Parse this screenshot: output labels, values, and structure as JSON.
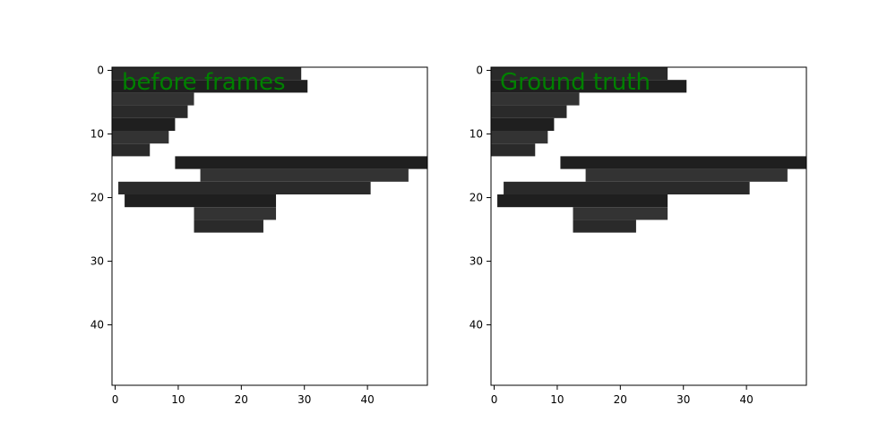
{
  "figure": {
    "background": "#ffffff",
    "panels_count": 2
  },
  "chart_data": [
    {
      "type": "heatmap",
      "title": "",
      "overlay_label": "before frames",
      "overlay_label_color": "#008000",
      "xlabel": "",
      "ylabel": "",
      "grid_size": [
        50,
        50
      ],
      "xlim": [
        -0.5,
        49.5
      ],
      "ylim": [
        49.5,
        -0.5
      ],
      "x_ticks": [
        0,
        10,
        20,
        30,
        40
      ],
      "y_ticks": [
        0,
        10,
        20,
        30,
        40
      ],
      "grid": false,
      "colormap": "gray",
      "description_of_values": "grayscale image, mostly black/dark-gray region in upper band (rows 0-27), white elsewhere",
      "dark_region_rows": [
        {
          "row": 0,
          "from": 0,
          "to": 29
        },
        {
          "row": 2,
          "from": 0,
          "to": 30
        },
        {
          "row": 4,
          "from": 0,
          "to": 12
        },
        {
          "row": 6,
          "from": 0,
          "to": 11
        },
        {
          "row": 8,
          "from": 0,
          "to": 9
        },
        {
          "row": 10,
          "from": 0,
          "to": 8
        },
        {
          "row": 12,
          "from": 0,
          "to": 5
        },
        {
          "row": 14,
          "from": 10,
          "to": 49
        },
        {
          "row": 16,
          "from": 14,
          "to": 46
        },
        {
          "row": 18,
          "from": 1,
          "to": 40
        },
        {
          "row": 20,
          "from": 2,
          "to": 25
        },
        {
          "row": 22,
          "from": 13,
          "to": 25
        },
        {
          "row": 24,
          "from": 13,
          "to": 23
        }
      ]
    },
    {
      "type": "heatmap",
      "title": "",
      "overlay_label": "Ground truth",
      "overlay_label_color": "#008000",
      "xlabel": "",
      "ylabel": "",
      "grid_size": [
        50,
        50
      ],
      "xlim": [
        -0.5,
        49.5
      ],
      "ylim": [
        49.5,
        -0.5
      ],
      "x_ticks": [
        0,
        10,
        20,
        30,
        40
      ],
      "y_ticks": [
        0,
        10,
        20,
        30,
        40
      ],
      "grid": false,
      "colormap": "gray",
      "description_of_values": "grayscale image, mostly black/dark-gray region in upper band (rows 0-27), white elsewhere",
      "dark_region_rows": [
        {
          "row": 0,
          "from": 0,
          "to": 27
        },
        {
          "row": 2,
          "from": 0,
          "to": 30
        },
        {
          "row": 4,
          "from": 0,
          "to": 13
        },
        {
          "row": 6,
          "from": 0,
          "to": 11
        },
        {
          "row": 8,
          "from": 0,
          "to": 9
        },
        {
          "row": 10,
          "from": 0,
          "to": 8
        },
        {
          "row": 12,
          "from": 0,
          "to": 6
        },
        {
          "row": 14,
          "from": 11,
          "to": 49
        },
        {
          "row": 16,
          "from": 15,
          "to": 46
        },
        {
          "row": 18,
          "from": 2,
          "to": 40
        },
        {
          "row": 20,
          "from": 1,
          "to": 27
        },
        {
          "row": 22,
          "from": 13,
          "to": 27
        },
        {
          "row": 24,
          "from": 13,
          "to": 22
        }
      ]
    }
  ]
}
